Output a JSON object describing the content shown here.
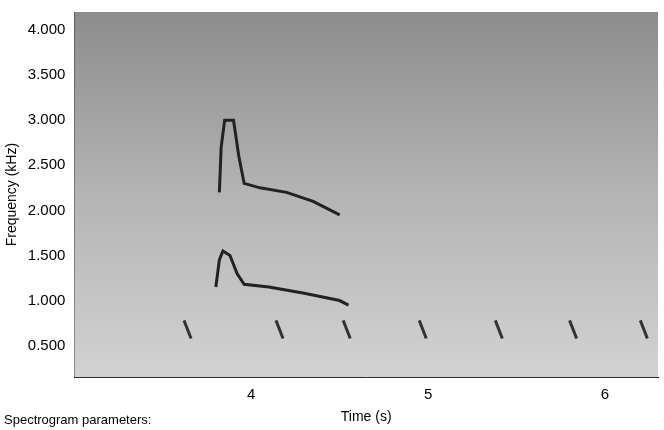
{
  "chart_data": {
    "type": "line",
    "xlabel": "Time (s)",
    "ylabel": "Frequency (kHz)",
    "annotations": [
      "Spectrogram parameters:"
    ],
    "xlim": [
      3.0,
      6.3
    ],
    "xticks": [
      4,
      5,
      6
    ],
    "ylim": [
      0.15,
      4.2
    ],
    "yticks": [
      {
        "value": 0.5,
        "label": "0.500"
      },
      {
        "value": 1.0,
        "label": "1.000"
      },
      {
        "value": 1.5,
        "label": "1.500"
      },
      {
        "value": 2.0,
        "label": "2.000"
      },
      {
        "value": 2.5,
        "label": "2.500"
      },
      {
        "value": 3.0,
        "label": "3.000"
      },
      {
        "value": 3.5,
        "label": "3.500"
      },
      {
        "value": 4.0,
        "label": "4.000"
      }
    ],
    "grid": false,
    "series": [
      {
        "color": "#222222",
        "x": [
          3.82,
          3.83,
          3.85,
          3.9,
          3.93,
          3.96,
          4.05,
          4.2,
          4.35,
          4.5
        ],
        "values": [
          2.2,
          2.7,
          3.0,
          3.0,
          2.6,
          2.3,
          2.25,
          2.2,
          2.1,
          1.95
        ]
      },
      {
        "color": "#222222",
        "x": [
          3.8,
          3.82,
          3.84,
          3.88,
          3.92,
          3.96,
          4.1,
          4.3,
          4.5,
          4.55
        ],
        "values": [
          1.15,
          1.45,
          1.55,
          1.5,
          1.3,
          1.18,
          1.15,
          1.08,
          1.0,
          0.95
        ]
      },
      {
        "color": "#333333",
        "x": [
          3.62,
          3.66,
          3.67,
          4.14,
          4.18,
          4.19,
          4.52,
          4.56,
          4.57,
          4.95,
          4.99,
          5.0,
          5.38,
          5.42,
          5.43,
          5.8,
          5.84,
          5.85,
          6.2,
          6.24,
          6.25
        ],
        "values": [
          0.78,
          0.58,
          null,
          0.78,
          0.58,
          null,
          0.78,
          0.58,
          null,
          0.78,
          0.58,
          null,
          0.78,
          0.58,
          null,
          0.78,
          0.58,
          null,
          0.78,
          0.58,
          null
        ]
      }
    ]
  }
}
